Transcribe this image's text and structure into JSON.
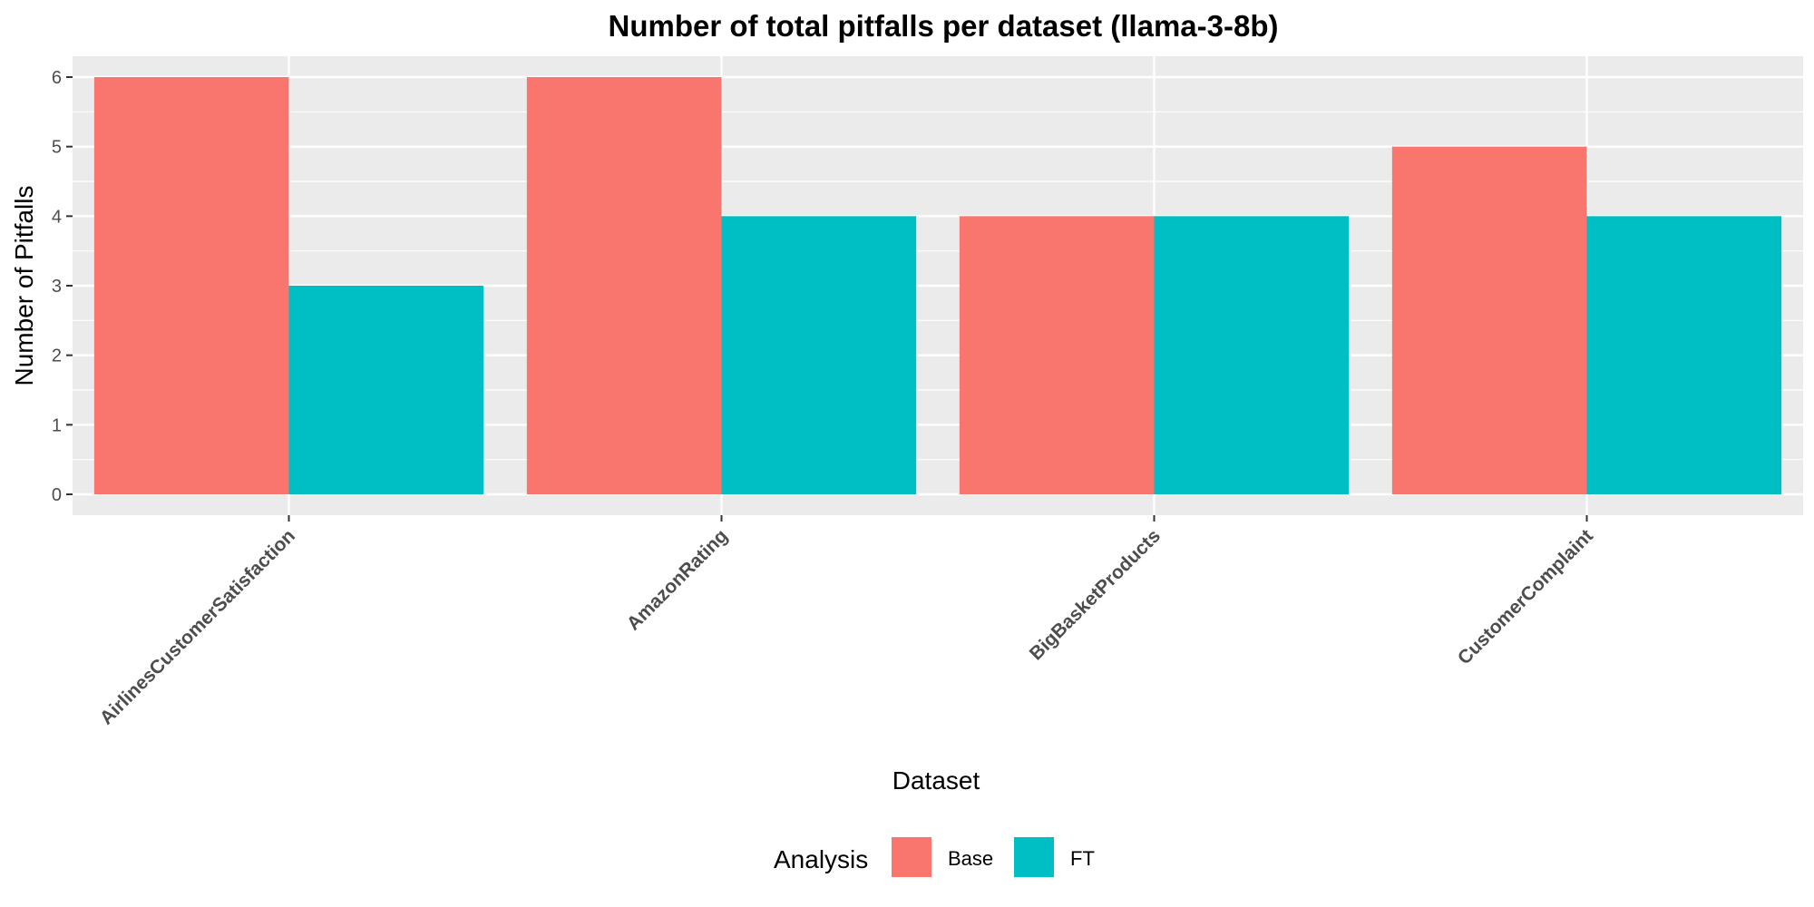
{
  "chart_data": {
    "type": "bar",
    "title": "Number of total pitfalls per dataset (llama-3-8b)",
    "xlabel": "Dataset",
    "ylabel": "Number of Pitfalls",
    "categories": [
      "AirlinesCustomerSatisfaction",
      "AmazonRating",
      "BigBasketProducts",
      "CustomerComplaint"
    ],
    "series": [
      {
        "name": "Base",
        "values": [
          6,
          6,
          4,
          5
        ],
        "color": "#F8766D"
      },
      {
        "name": "FT",
        "values": [
          3,
          4,
          4,
          4
        ],
        "color": "#00BFC4"
      }
    ],
    "ylim": [
      -0.3,
      6.3
    ],
    "yticks": [
      0,
      1,
      2,
      3,
      4,
      5,
      6
    ],
    "grid": true,
    "legend": {
      "title": "Analysis",
      "position": "bottom"
    },
    "panel_background": "#EBEBEB"
  }
}
